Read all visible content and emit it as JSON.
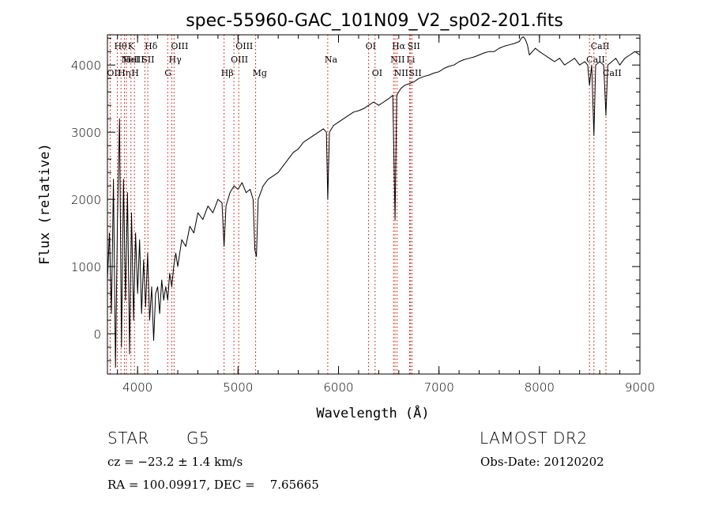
{
  "chart_data": {
    "type": "line",
    "title": "spec-55960-GAC_101N09_V2_sp02-201.fits",
    "xlabel": "Wavelength (Å)",
    "ylabel": "Flux (relative)",
    "xlim": [
      3700,
      9000
    ],
    "ylim": [
      -600,
      4450
    ],
    "x_ticks": [
      4000,
      5000,
      6000,
      7000,
      8000,
      9000
    ],
    "y_ticks": [
      0,
      1000,
      2000,
      3000,
      4000
    ],
    "grid": false,
    "line_color": "#000000",
    "line_marker_color": "#cc0000",
    "series": [
      {
        "values": [
          [
            3700,
            800
          ],
          [
            3720,
            1500
          ],
          [
            3740,
            300
          ],
          [
            3760,
            2300
          ],
          [
            3780,
            -500
          ],
          [
            3800,
            1700
          ],
          [
            3820,
            3200
          ],
          [
            3840,
            -200
          ],
          [
            3860,
            2300
          ],
          [
            3880,
            500
          ],
          [
            3900,
            2100
          ],
          [
            3920,
            -300
          ],
          [
            3940,
            1800
          ],
          [
            3960,
            200
          ],
          [
            3980,
            1500
          ],
          [
            4000,
            600
          ],
          [
            4020,
            1400
          ],
          [
            4040,
            300
          ],
          [
            4060,
            1100
          ],
          [
            4080,
            400
          ],
          [
            4100,
            1200
          ],
          [
            4120,
            200
          ],
          [
            4140,
            700
          ],
          [
            4160,
            -100
          ],
          [
            4180,
            600
          ],
          [
            4200,
            700
          ],
          [
            4220,
            300
          ],
          [
            4240,
            800
          ],
          [
            4260,
            500
          ],
          [
            4280,
            700
          ],
          [
            4300,
            500
          ],
          [
            4320,
            900
          ],
          [
            4340,
            700
          ],
          [
            4360,
            1000
          ],
          [
            4380,
            1200
          ],
          [
            4400,
            1000
          ],
          [
            4440,
            1400
          ],
          [
            4480,
            1300
          ],
          [
            4520,
            1600
          ],
          [
            4560,
            1500
          ],
          [
            4600,
            1800
          ],
          [
            4650,
            1700
          ],
          [
            4700,
            1900
          ],
          [
            4750,
            1800
          ],
          [
            4800,
            2000
          ],
          [
            4840,
            1950
          ],
          [
            4861,
            1300
          ],
          [
            4880,
            1900
          ],
          [
            4920,
            2100
          ],
          [
            4960,
            2200
          ],
          [
            5000,
            2150
          ],
          [
            5040,
            2250
          ],
          [
            5080,
            2100
          ],
          [
            5120,
            2150
          ],
          [
            5150,
            2000
          ],
          [
            5167,
            1250
          ],
          [
            5183,
            1150
          ],
          [
            5200,
            2000
          ],
          [
            5250,
            2200
          ],
          [
            5300,
            2300
          ],
          [
            5350,
            2350
          ],
          [
            5400,
            2400
          ],
          [
            5450,
            2500
          ],
          [
            5500,
            2600
          ],
          [
            5550,
            2700
          ],
          [
            5600,
            2750
          ],
          [
            5650,
            2850
          ],
          [
            5700,
            2900
          ],
          [
            5750,
            2950
          ],
          [
            5800,
            3000
          ],
          [
            5850,
            3050
          ],
          [
            5880,
            3000
          ],
          [
            5893,
            2000
          ],
          [
            5910,
            3000
          ],
          [
            5950,
            3100
          ],
          [
            6000,
            3150
          ],
          [
            6050,
            3200
          ],
          [
            6100,
            3250
          ],
          [
            6150,
            3300
          ],
          [
            6200,
            3320
          ],
          [
            6250,
            3350
          ],
          [
            6300,
            3400
          ],
          [
            6350,
            3450
          ],
          [
            6400,
            3400
          ],
          [
            6450,
            3450
          ],
          [
            6500,
            3500
          ],
          [
            6540,
            3550
          ],
          [
            6563,
            1700
          ],
          [
            6580,
            3550
          ],
          [
            6620,
            3650
          ],
          [
            6660,
            3700
          ],
          [
            6700,
            3720
          ],
          [
            6750,
            3750
          ],
          [
            6800,
            3800
          ],
          [
            6850,
            3830
          ],
          [
            6900,
            3850
          ],
          [
            6950,
            3880
          ],
          [
            7000,
            3900
          ],
          [
            7050,
            3950
          ],
          [
            7100,
            3980
          ],
          [
            7150,
            4000
          ],
          [
            7200,
            4050
          ],
          [
            7250,
            4080
          ],
          [
            7300,
            4100
          ],
          [
            7350,
            4120
          ],
          [
            7400,
            4150
          ],
          [
            7450,
            4180
          ],
          [
            7500,
            4200
          ],
          [
            7550,
            4200
          ],
          [
            7600,
            4250
          ],
          [
            7650,
            4280
          ],
          [
            7700,
            4300
          ],
          [
            7750,
            4320
          ],
          [
            7800,
            4350
          ],
          [
            7820,
            4400
          ],
          [
            7840,
            4420
          ],
          [
            7860,
            4380
          ],
          [
            7880,
            4300
          ],
          [
            7900,
            4150
          ],
          [
            7930,
            4200
          ],
          [
            7960,
            4250
          ],
          [
            8000,
            4200
          ],
          [
            8050,
            4150
          ],
          [
            8100,
            4100
          ],
          [
            8150,
            4050
          ],
          [
            8200,
            4100
          ],
          [
            8250,
            4000
          ],
          [
            8300,
            4050
          ],
          [
            8350,
            4100
          ],
          [
            8400,
            4000
          ],
          [
            8450,
            4050
          ],
          [
            8480,
            4000
          ],
          [
            8498,
            3700
          ],
          [
            8520,
            4000
          ],
          [
            8542,
            2950
          ],
          [
            8560,
            4000
          ],
          [
            8600,
            4050
          ],
          [
            8640,
            4000
          ],
          [
            8662,
            3250
          ],
          [
            8680,
            4000
          ],
          [
            8720,
            4050
          ],
          [
            8760,
            4100
          ],
          [
            8800,
            4000
          ],
          [
            8850,
            4100
          ],
          [
            8900,
            4150
          ],
          [
            8950,
            4200
          ],
          [
            9000,
            4150
          ]
        ]
      }
    ],
    "line_markers": [
      {
        "x": 3727,
        "labels": [
          "OII"
        ],
        "rows": [
          2
        ]
      },
      {
        "x": 3798,
        "labels": [
          "Hθ"
        ],
        "rows": [
          0
        ]
      },
      {
        "x": 3835,
        "labels": [
          "Hη"
        ],
        "rows": [
          2
        ]
      },
      {
        "x": 3869,
        "labels": [
          "NeIII"
        ],
        "rows": [
          1
        ]
      },
      {
        "x": 3889,
        "labels": [
          "HeI"
        ],
        "rows": [
          1
        ]
      },
      {
        "x": 3934,
        "labels": [
          "K"
        ],
        "rows": [
          0
        ]
      },
      {
        "x": 3969,
        "labels": [
          "H"
        ],
        "rows": [
          2
        ]
      },
      {
        "x": 4072,
        "labels": [
          "SII"
        ],
        "rows": [
          1
        ]
      },
      {
        "x": 4102,
        "labels": [
          "Hδ"
        ],
        "rows": [
          0
        ]
      },
      {
        "x": 4300,
        "labels": [
          "G"
        ],
        "rows": [
          2
        ]
      },
      {
        "x": 4341,
        "labels": [
          "Hγ"
        ],
        "rows": [
          1
        ]
      },
      {
        "x": 4363,
        "labels": [
          "OIII"
        ],
        "rows": [
          0
        ]
      },
      {
        "x": 4861,
        "labels": [
          "Hβ"
        ],
        "rows": [
          2
        ]
      },
      {
        "x": 4959,
        "labels": [
          "OIII"
        ],
        "rows": [
          1
        ]
      },
      {
        "x": 5007,
        "labels": [
          "OIII"
        ],
        "rows": [
          0
        ]
      },
      {
        "x": 5175,
        "labels": [
          "Mg"
        ],
        "rows": [
          2
        ]
      },
      {
        "x": 5893,
        "labels": [
          "Na"
        ],
        "rows": [
          1
        ]
      },
      {
        "x": 6300,
        "labels": [
          "OI"
        ],
        "rows": [
          0
        ]
      },
      {
        "x": 6364,
        "labels": [
          "OI"
        ],
        "rows": [
          2
        ]
      },
      {
        "x": 6548,
        "labels": [
          "NII"
        ],
        "rows": [
          1
        ]
      },
      {
        "x": 6563,
        "labels": [
          "Hα"
        ],
        "rows": [
          0
        ]
      },
      {
        "x": 6583,
        "labels": [
          "NII"
        ],
        "rows": [
          2
        ]
      },
      {
        "x": 6708,
        "labels": [
          "Li"
        ],
        "rows": [
          1
        ]
      },
      {
        "x": 6717,
        "labels": [
          "SII"
        ],
        "rows": [
          0
        ]
      },
      {
        "x": 6731,
        "labels": [
          "SII"
        ],
        "rows": [
          2
        ]
      },
      {
        "x": 8498,
        "labels": [
          "CaII"
        ],
        "rows": [
          1
        ]
      },
      {
        "x": 8542,
        "labels": [
          "CaII"
        ],
        "rows": [
          0
        ]
      },
      {
        "x": 8662,
        "labels": [
          "CaII"
        ],
        "rows": [
          2
        ]
      }
    ]
  },
  "info": {
    "object_class": "STAR",
    "subclass": "G5",
    "survey": "LAMOST DR2",
    "redshift_line": "cz = −23.2 ± 1.4 km/s",
    "obs_date_line": "Obs-Date: 20120202",
    "coords_line": "RA = 100.09917, DEC =    7.65665"
  }
}
